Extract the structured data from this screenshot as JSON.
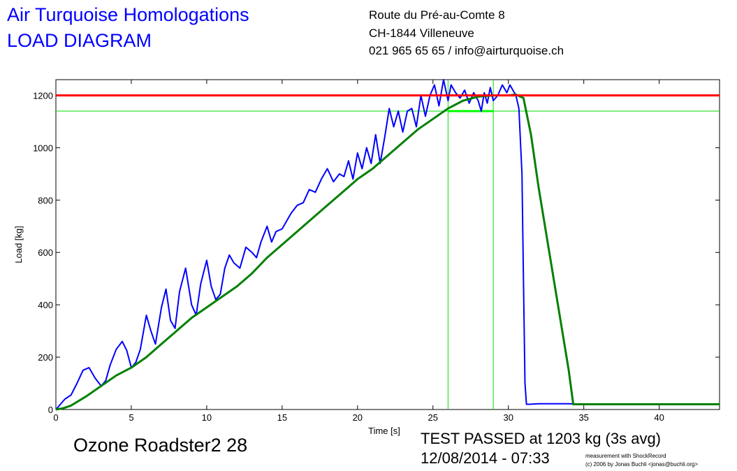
{
  "header": {
    "title_line1": "Air Turquoise Homologations",
    "title_line2": "LOAD DIAGRAM",
    "address_line1": "Route du Pré-au-Comte 8",
    "address_line2": "CH-1844 Villeneuve",
    "address_line3": "021 965 65 65 / info@airturquoise.ch"
  },
  "footer": {
    "product": "Ozone Roadster2 28",
    "result_line1": "TEST PASSED at 1203 kg (3s avg)",
    "result_line2": "12/08/2014 - 07:33",
    "credit_line1": "measurement with ShockRecord",
    "credit_line2": "(c) 2006 by Jonas Buchli <jonas@buchli.org>"
  },
  "chart_data": {
    "type": "line",
    "title": "",
    "xlabel": "Time [s]",
    "ylabel": "Load [kg]",
    "xlim": [
      0,
      44
    ],
    "ylim": [
      0,
      1260
    ],
    "xticks": [
      0,
      5,
      10,
      15,
      20,
      25,
      30,
      35,
      40
    ],
    "yticks": [
      0,
      200,
      400,
      600,
      800,
      1000,
      1200
    ],
    "grid": false,
    "reference_lines": {
      "target_load": 1200,
      "threshold_load": 1140,
      "window_start": 26,
      "window_end": 29
    },
    "average_segment": {
      "x0": 26,
      "x1": 29,
      "y": 1140
    },
    "colors": {
      "raw": "#0000ff",
      "average": "#008000",
      "target": "#ff0000",
      "threshold": "#00dd00",
      "window_avg": "#00ff00"
    },
    "series": [
      {
        "x": [
          0,
          0.3,
          0.6,
          1.0,
          1.4,
          1.8,
          2.2,
          2.6,
          3.0,
          3.3,
          3.6,
          4.0,
          4.4,
          4.7,
          5.0,
          5.3,
          5.6,
          6.0,
          6.3,
          6.6,
          7.0,
          7.3,
          7.6,
          7.9,
          8.2,
          8.6,
          9.0,
          9.3,
          9.6,
          10.0,
          10.3,
          10.6,
          10.9,
          11.2,
          11.5,
          11.8,
          12.2,
          12.6,
          13.0,
          13.3,
          13.6,
          14.0,
          14.3,
          14.6,
          15.0,
          15.3,
          15.6,
          16.0,
          16.4,
          16.8,
          17.2,
          17.6,
          18.0,
          18.4,
          18.8,
          19.1,
          19.4,
          19.7,
          20.0,
          20.3,
          20.6,
          20.9,
          21.2,
          21.5,
          21.8,
          22.1,
          22.4,
          22.7,
          23.0,
          23.3,
          23.6,
          23.9,
          24.2,
          24.5,
          24.8,
          25.1,
          25.4,
          25.7,
          26.0,
          26.2,
          26.5,
          26.8,
          27.1,
          27.4,
          27.7,
          28.0,
          28.2,
          28.4,
          28.6,
          28.8,
          29.0,
          29.3,
          29.6,
          29.9,
          30.1,
          30.3,
          30.5,
          30.7,
          30.9,
          31.0,
          31.1,
          31.2,
          31.4,
          32.0,
          33.0,
          34.0,
          35.0,
          40.0,
          44.0
        ],
        "values": [
          0,
          20,
          40,
          55,
          100,
          150,
          160,
          120,
          90,
          110,
          170,
          230,
          260,
          225,
          160,
          180,
          230,
          360,
          300,
          250,
          390,
          460,
          340,
          310,
          450,
          540,
          400,
          360,
          480,
          570,
          470,
          420,
          440,
          540,
          590,
          560,
          540,
          620,
          600,
          580,
          640,
          700,
          640,
          680,
          690,
          720,
          750,
          780,
          790,
          840,
          830,
          880,
          920,
          870,
          900,
          890,
          950,
          880,
          980,
          920,
          1000,
          940,
          1050,
          940,
          1040,
          1150,
          1080,
          1140,
          1060,
          1140,
          1150,
          1080,
          1200,
          1120,
          1200,
          1240,
          1160,
          1260,
          1180,
          1240,
          1210,
          1190,
          1220,
          1170,
          1210,
          1180,
          1140,
          1210,
          1170,
          1230,
          1180,
          1200,
          1240,
          1210,
          1240,
          1220,
          1200,
          1150,
          900,
          500,
          100,
          20,
          20,
          22,
          22,
          22,
          20,
          20,
          20
        ]
      },
      {
        "x": [
          0,
          0.5,
          1.0,
          2.0,
          3.0,
          4.0,
          5.0,
          6.0,
          7.0,
          8.0,
          9.0,
          10.0,
          11.0,
          12.0,
          13.0,
          14.0,
          15.0,
          16.0,
          17.0,
          18.0,
          19.0,
          20.0,
          21.0,
          22.0,
          23.0,
          24.0,
          25.0,
          26.0,
          27.0,
          28.0,
          29.0,
          30.0,
          30.5,
          31.0,
          31.5,
          32.0,
          33.0,
          34.0,
          34.3,
          35.0,
          40.0,
          44.0
        ],
        "values": [
          0,
          5,
          15,
          50,
          90,
          130,
          160,
          200,
          250,
          300,
          350,
          390,
          430,
          470,
          520,
          580,
          630,
          680,
          730,
          780,
          830,
          880,
          920,
          970,
          1020,
          1070,
          1110,
          1150,
          1180,
          1195,
          1200,
          1200,
          1203,
          1190,
          1050,
          850,
          500,
          150,
          20,
          20,
          20,
          20
        ]
      }
    ]
  }
}
